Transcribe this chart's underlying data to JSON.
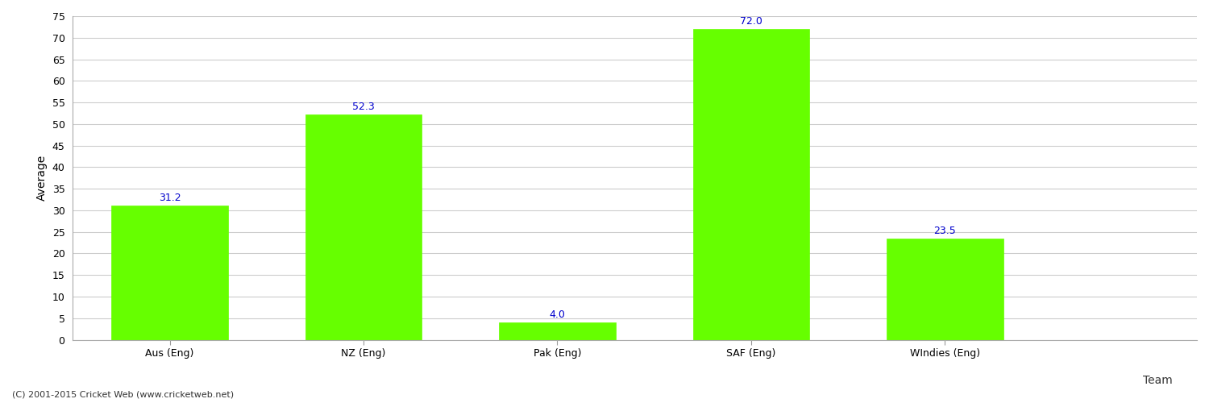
{
  "categories": [
    "Aus (Eng)",
    "NZ (Eng)",
    "Pak (Eng)",
    "SAF (Eng)",
    "WIndies (Eng)"
  ],
  "values": [
    31.2,
    52.3,
    4.0,
    72.0,
    23.5
  ],
  "bar_color": "#66ff00",
  "bar_edge_color": "#66ff00",
  "value_label_color": "#0000cc",
  "xlabel": "Team",
  "ylabel": "Average",
  "ylim": [
    0,
    75
  ],
  "yticks": [
    0,
    5,
    10,
    15,
    20,
    25,
    30,
    35,
    40,
    45,
    50,
    55,
    60,
    65,
    70,
    75
  ],
  "grid_color": "#cccccc",
  "background_color": "#ffffff",
  "footnote": "(C) 2001-2015 Cricket Web (www.cricketweb.net)",
  "value_fontsize": 9,
  "axis_label_fontsize": 10,
  "tick_label_fontsize": 9,
  "footnote_fontsize": 8
}
